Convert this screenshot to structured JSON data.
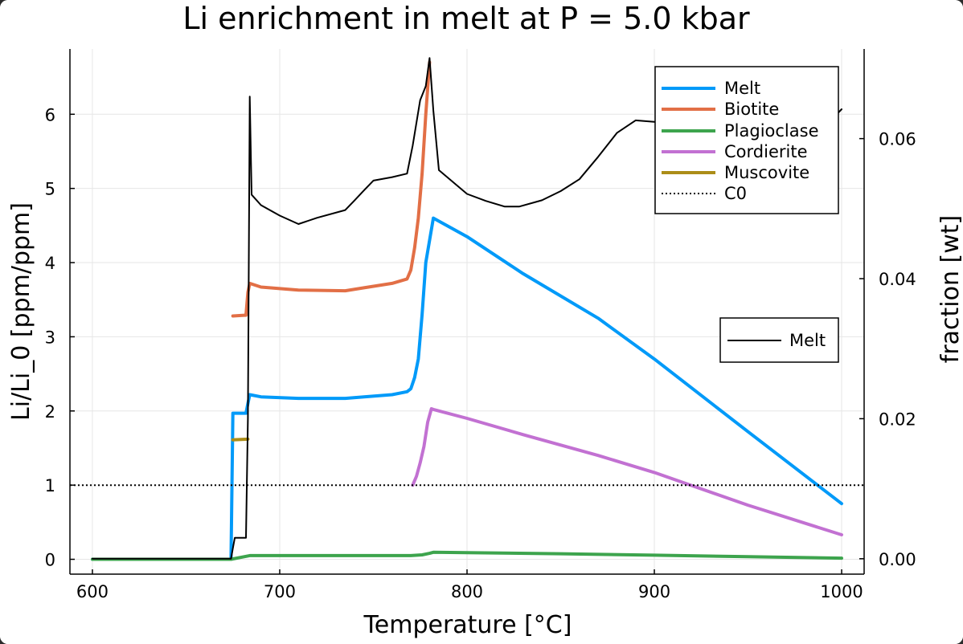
{
  "chart_data": {
    "type": "line",
    "title": "Li enrichment in melt at P = 5.0 kbar",
    "xlabel": "Temperature [°C]",
    "ylabel": "Li/Li_0 [ppm/ppm]",
    "y2label": "fraction [wt]",
    "xlim": [
      588,
      1012
    ],
    "ylim": [
      -0.2,
      6.88
    ],
    "y2lim": [
      -0.0022,
      0.0728
    ],
    "xticks": [
      600,
      700,
      800,
      900,
      1000
    ],
    "yticks": [
      0,
      1,
      2,
      3,
      4,
      5,
      6
    ],
    "y2ticks": [
      0.0,
      0.02,
      0.04,
      0.06
    ],
    "xtick_labels": [
      "600",
      "700",
      "800",
      "900",
      "1000"
    ],
    "ytick_labels": [
      "0",
      "1",
      "2",
      "3",
      "4",
      "5",
      "6"
    ],
    "y2tick_labels": [
      "0.00",
      "0.02",
      "0.04",
      "0.06"
    ],
    "grid": true,
    "legend_left": [
      "Melt",
      "Biotite",
      "Plagioclase",
      "Cordierite",
      "Muscovite",
      "C0"
    ],
    "legend_right": [
      "Melt"
    ],
    "series": [
      {
        "name": "Melt",
        "axis": "left",
        "color": "#009af9",
        "style": "solid",
        "x": [
          600,
          674,
          675,
          676,
          682,
          683,
          684,
          690,
          710,
          735,
          745,
          760,
          768,
          770,
          772,
          774,
          776,
          778,
          780,
          782,
          800,
          830,
          870,
          900,
          950,
          1000
        ],
        "y": [
          0,
          0,
          1.97,
          1.97,
          1.97,
          2.1,
          2.22,
          2.19,
          2.17,
          2.17,
          2.19,
          2.22,
          2.26,
          2.3,
          2.45,
          2.7,
          3.3,
          4.0,
          4.3,
          4.6,
          4.35,
          3.85,
          3.25,
          2.7,
          1.72,
          0.75
        ]
      },
      {
        "name": "Biotite",
        "axis": "left",
        "color": "#e26f46",
        "style": "solid",
        "x": [
          675,
          681,
          682,
          683,
          684,
          690,
          710,
          735,
          745,
          760,
          768,
          770,
          772,
          774,
          776,
          778,
          780
        ],
        "y": [
          3.28,
          3.29,
          3.29,
          3.6,
          3.72,
          3.67,
          3.63,
          3.62,
          3.66,
          3.72,
          3.78,
          3.9,
          4.2,
          4.6,
          5.2,
          6.0,
          6.7
        ]
      },
      {
        "name": "Plagioclase",
        "axis": "left",
        "color": "#3da44d",
        "style": "solid",
        "x": [
          600,
          674,
          684,
          770,
          776,
          780,
          782,
          800,
          850,
          900,
          950,
          1000
        ],
        "y": [
          0,
          0,
          0.05,
          0.05,
          0.06,
          0.08,
          0.095,
          0.09,
          0.075,
          0.055,
          0.035,
          0.015
        ]
      },
      {
        "name": "Cordierite",
        "axis": "left",
        "color": "#c271d2",
        "style": "solid",
        "x": [
          771,
          773,
          775,
          777,
          779,
          781,
          782,
          800,
          830,
          870,
          900,
          950,
          1000
        ],
        "y": [
          1.0,
          1.12,
          1.3,
          1.52,
          1.85,
          2.03,
          2.02,
          1.9,
          1.68,
          1.4,
          1.17,
          0.73,
          0.33
        ]
      },
      {
        "name": "Muscovite",
        "axis": "left",
        "color": "#ac8d18",
        "style": "solid",
        "x": [
          675,
          683
        ],
        "y": [
          1.61,
          1.62
        ]
      },
      {
        "name": "C0",
        "axis": "left",
        "color": "#000000",
        "style": "dotted",
        "x": [
          588,
          1012
        ],
        "y": [
          1,
          1
        ]
      },
      {
        "name": "Melt",
        "axis": "right",
        "color": "#000000",
        "style": "solid",
        "x": [
          600,
          674,
          675,
          676,
          682,
          683,
          684,
          685,
          690,
          700,
          710,
          720,
          735,
          740,
          745,
          750,
          760,
          768,
          771,
          775,
          778,
          780,
          782,
          785,
          800,
          810,
          820,
          828,
          840,
          850,
          860,
          870,
          880,
          890,
          900,
          910,
          920,
          930,
          940,
          945,
          950,
          955,
          960,
          965,
          970,
          975,
          980,
          985,
          990,
          995,
          1000
        ],
        "y": [
          0,
          0,
          0.0015,
          0.003,
          0.003,
          0.02,
          0.066,
          0.052,
          0.0505,
          0.049,
          0.0478,
          0.0487,
          0.0498,
          0.0512,
          0.0526,
          0.054,
          0.0545,
          0.055,
          0.059,
          0.0655,
          0.0675,
          0.0715,
          0.064,
          0.0555,
          0.0521,
          0.0511,
          0.0503,
          0.0503,
          0.0512,
          0.0525,
          0.0542,
          0.0574,
          0.0608,
          0.0626,
          0.0624,
          0.0625,
          0.0622,
          0.0619,
          0.0625,
          0.062,
          0.0633,
          0.0625,
          0.0636,
          0.0629,
          0.0644,
          0.0632,
          0.0648,
          0.0634,
          0.0651,
          0.0628,
          0.0642
        ]
      }
    ]
  }
}
